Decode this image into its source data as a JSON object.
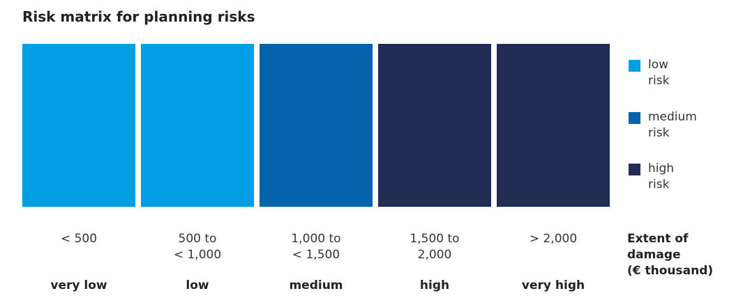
{
  "chart_data": {
    "type": "table",
    "title": "Risk matrix for planning risks",
    "xlabel": "Extent of damage\n(€ thousand)",
    "categories": [
      {
        "range": "< 500",
        "level": "very low",
        "risk": "low"
      },
      {
        "range": "500 to\n< 1,000",
        "level": "low",
        "risk": "low"
      },
      {
        "range": "1,000 to\n< 1,500",
        "level": "medium",
        "risk": "medium"
      },
      {
        "range": "1,500 to\n2,000",
        "level": "high",
        "risk": "high"
      },
      {
        "range": "> 2,000",
        "level": "very high",
        "risk": "high"
      }
    ],
    "legend": {
      "placement": "right",
      "items": [
        {
          "key": "low",
          "label": "low\nrisk",
          "color": "#009fe3"
        },
        {
          "key": "medium",
          "label": "medium\nrisk",
          "color": "#0563ab"
        },
        {
          "key": "high",
          "label": "high\nrisk",
          "color": "#222d55"
        }
      ]
    }
  }
}
